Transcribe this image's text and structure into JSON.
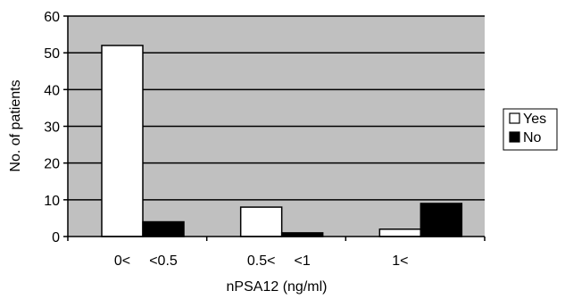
{
  "chart_data": {
    "type": "bar",
    "title": "",
    "xlabel": "nPSA12 (ng/ml)",
    "ylabel": "No. of patients",
    "ylim": [
      0,
      60
    ],
    "yticks": [
      0,
      10,
      20,
      30,
      40,
      50,
      60
    ],
    "categories": [
      "0< <0.5",
      "0.5< <1",
      "1<"
    ],
    "category_labels": [
      {
        "left": "0<",
        "right": "<0.5"
      },
      {
        "left": "0.5<",
        "right": "<1"
      },
      {
        "left": "1<",
        "right": ""
      }
    ],
    "series": [
      {
        "name": "Yes",
        "values": [
          52,
          8,
          2
        ],
        "color": "#ffffff"
      },
      {
        "name": "No",
        "values": [
          4,
          1,
          9
        ],
        "color": "#000000"
      }
    ],
    "grid": true,
    "legend_position": "right",
    "plot_background": "#c0c0c0"
  }
}
